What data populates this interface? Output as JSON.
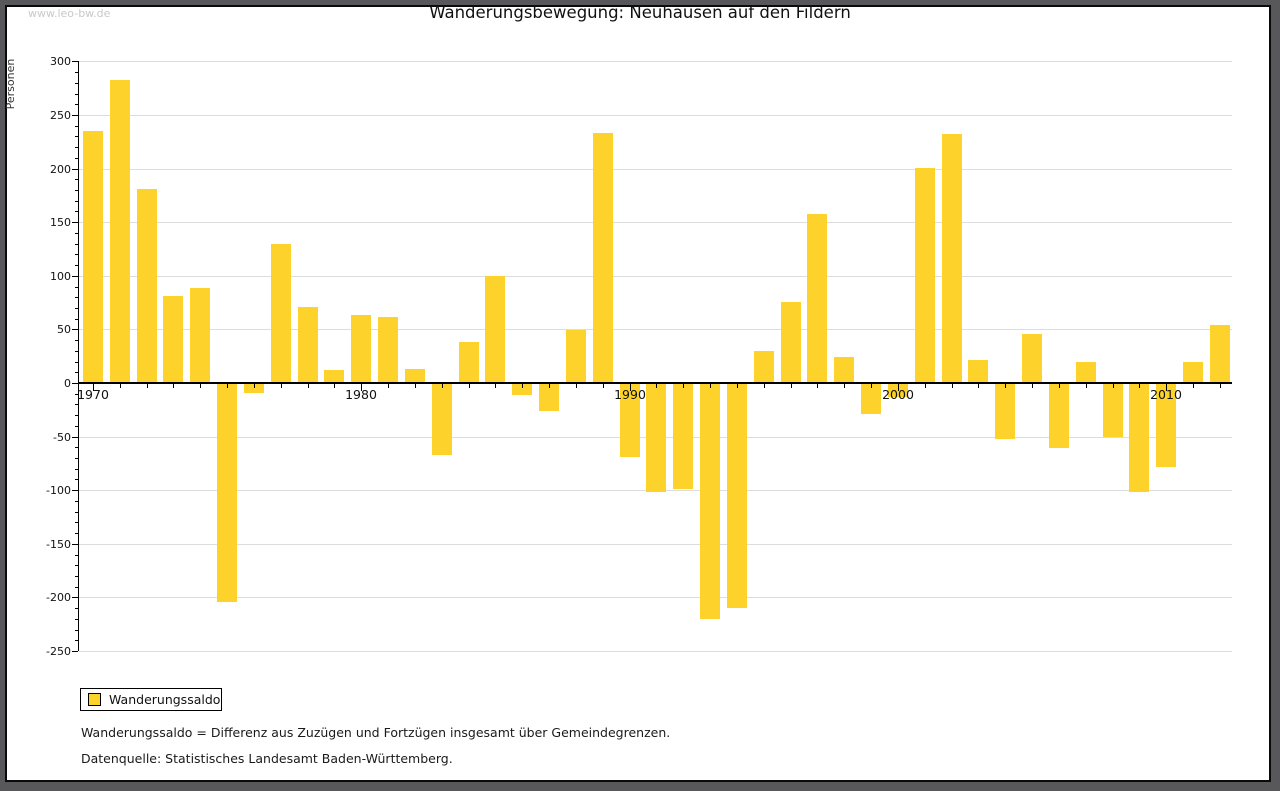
{
  "page": {
    "watermark": "www.leo-bw.de",
    "title": "Wanderungsbewegung: Neuhausen auf den Fildern"
  },
  "legend": {
    "label": "Wanderungssaldo",
    "swatch_color": "#FDD32B"
  },
  "footnotes": {
    "line1": "Wanderungssaldo = Differenz aus Zuzügen und Fortzügen insgesamt über Gemeindegrenzen.",
    "line2": "Datenquelle: Statistisches Landesamt Baden-Württemberg."
  },
  "chart_data": {
    "type": "bar",
    "title": "Wanderungsbewegung: Neuhausen auf den Fildern",
    "xlabel": "",
    "ylabel": "Personen",
    "legend_position": "bottom-left",
    "grid": true,
    "bar_color": "#FDD32B",
    "ylim": [
      -250,
      300
    ],
    "ytick_step": 50,
    "y_minor_step": 10,
    "xticks_labeled": [
      1970,
      1980,
      1990,
      2000,
      2010
    ],
    "series_name": "Wanderungssaldo",
    "x": [
      1970,
      1971,
      1972,
      1973,
      1974,
      1975,
      1976,
      1977,
      1978,
      1979,
      1980,
      1981,
      1982,
      1983,
      1984,
      1985,
      1986,
      1987,
      1988,
      1989,
      1990,
      1991,
      1992,
      1993,
      1994,
      1995,
      1996,
      1997,
      1998,
      1999,
      2000,
      2001,
      2002,
      2003,
      2004,
      2005,
      2006,
      2007,
      2008,
      2009,
      2010,
      2011,
      2012
    ],
    "values": [
      235,
      283,
      181,
      81,
      89,
      -203,
      -8,
      130,
      71,
      12,
      63,
      62,
      13,
      -66,
      38,
      100,
      -10,
      -25,
      49,
      233,
      -68,
      -101,
      -98,
      -219,
      -209,
      30,
      76,
      158,
      24,
      -28,
      -12,
      201,
      232,
      21,
      -51,
      46,
      -60,
      20,
      -49,
      -101,
      -77,
      20,
      54
    ]
  }
}
